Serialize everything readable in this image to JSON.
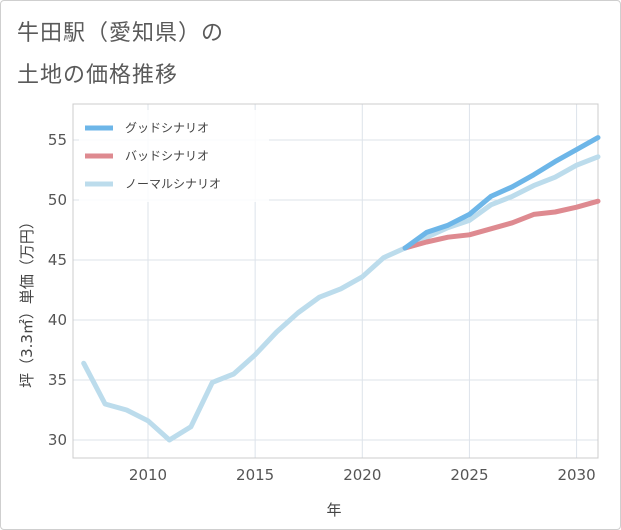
{
  "page": {
    "title_line1": "牛田駅（愛知県）の",
    "title_line2": "土地の価格推移"
  },
  "chart_data": {
    "type": "line",
    "title": "牛田駅（愛知県）の土地の価格推移",
    "xlabel": "年",
    "ylabel": "坪（3.3㎡）単価（万円）",
    "xlim": [
      2006.5,
      2031
    ],
    "ylim": [
      28.5,
      58
    ],
    "x_ticks": [
      2010,
      2015,
      2020,
      2025,
      2030
    ],
    "y_ticks": [
      30,
      35,
      40,
      45,
      50,
      55
    ],
    "grid": true,
    "legend_position": "top-left",
    "series": [
      {
        "name": "グッドシナリオ",
        "color": "#6db6e8",
        "points": [
          [
            2022,
            46.0
          ],
          [
            2023,
            47.3
          ],
          [
            2024,
            47.9
          ],
          [
            2025,
            48.8
          ],
          [
            2026,
            50.3
          ],
          [
            2027,
            51.1
          ],
          [
            2028,
            52.1
          ],
          [
            2029,
            53.2
          ],
          [
            2030,
            54.2
          ],
          [
            2031,
            55.2
          ]
        ]
      },
      {
        "name": "バッドシナリオ",
        "color": "#de8a90",
        "points": [
          [
            2022,
            46.0
          ],
          [
            2023,
            46.5
          ],
          [
            2024,
            46.9
          ],
          [
            2025,
            47.1
          ],
          [
            2026,
            47.6
          ],
          [
            2027,
            48.1
          ],
          [
            2028,
            48.8
          ],
          [
            2029,
            49.0
          ],
          [
            2030,
            49.4
          ],
          [
            2031,
            49.9
          ]
        ]
      },
      {
        "name": "ノーマルシナリオ",
        "color": "#bcdcec",
        "points": [
          [
            2007,
            36.4
          ],
          [
            2008,
            33.0
          ],
          [
            2009,
            32.5
          ],
          [
            2010,
            31.6
          ],
          [
            2011,
            30.0
          ],
          [
            2012,
            31.1
          ],
          [
            2013,
            34.8
          ],
          [
            2014,
            35.5
          ],
          [
            2015,
            37.1
          ],
          [
            2016,
            39.0
          ],
          [
            2017,
            40.6
          ],
          [
            2018,
            41.9
          ],
          [
            2019,
            42.6
          ],
          [
            2020,
            43.6
          ],
          [
            2021,
            45.2
          ],
          [
            2022,
            46.0
          ],
          [
            2023,
            46.9
          ],
          [
            2024,
            47.7
          ],
          [
            2025,
            48.3
          ],
          [
            2026,
            49.6
          ],
          [
            2027,
            50.3
          ],
          [
            2028,
            51.2
          ],
          [
            2029,
            51.9
          ],
          [
            2030,
            52.9
          ],
          [
            2031,
            53.6
          ]
        ]
      }
    ]
  }
}
